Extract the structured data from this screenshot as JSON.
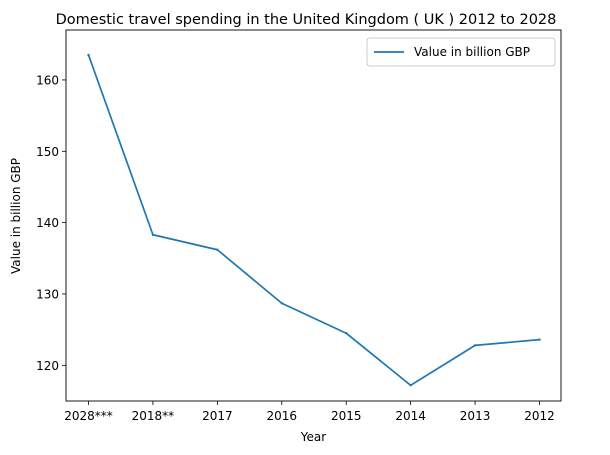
{
  "chart_data": {
    "type": "line",
    "title": "Domestic travel spending in the United Kingdom ( UK ) 2012 to 2028",
    "xlabel": "Year",
    "ylabel": "Value in billion GBP",
    "categories": [
      "2028***",
      "2018**",
      "2017",
      "2016",
      "2015",
      "2014",
      "2013",
      "2012"
    ],
    "series": [
      {
        "name": "Value in billion GBP",
        "color": "#1f77b4",
        "values": [
          163.5,
          138.3,
          136.2,
          128.7,
          124.5,
          117.2,
          122.8,
          123.6
        ]
      }
    ],
    "ylim": [
      115,
      167
    ],
    "yticks": [
      120,
      130,
      140,
      150,
      160
    ],
    "grid": false,
    "legend_position": "top-right"
  }
}
